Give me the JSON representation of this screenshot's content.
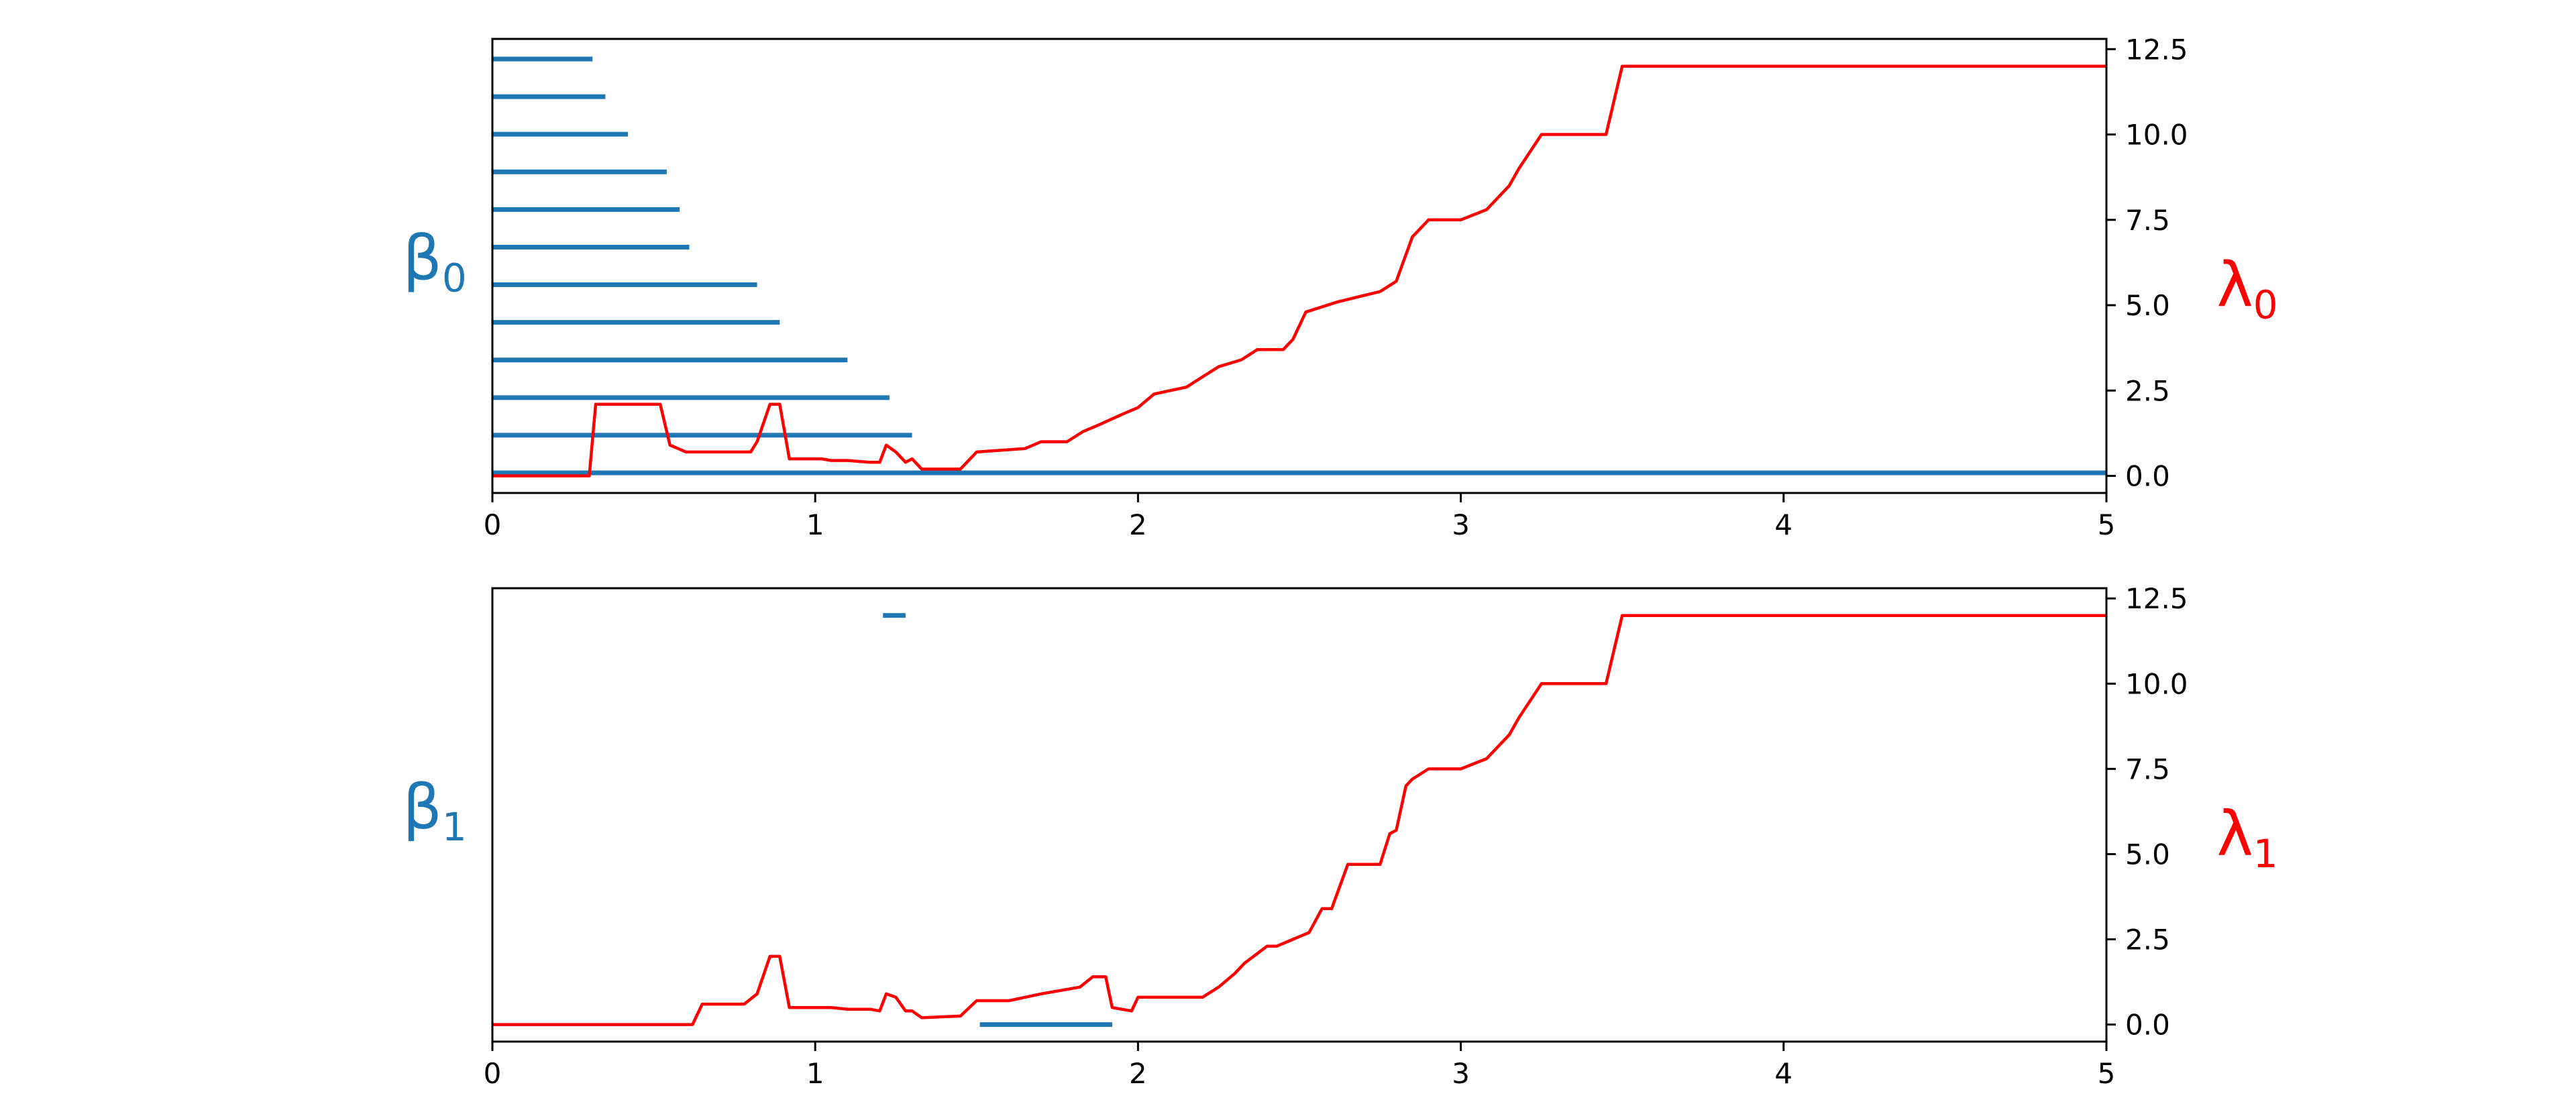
{
  "colors": {
    "barcode": "#1f77b4",
    "lambda": "#ff0000",
    "axis": "#000000"
  },
  "chart_data": [
    {
      "type": "line",
      "panel": "top",
      "left_label": {
        "text": "β",
        "sub": "0"
      },
      "right_label": {
        "text": "λ",
        "sub": "0"
      },
      "x_ticks": [
        "0",
        "1",
        "2",
        "3",
        "4",
        "5"
      ],
      "xlim": [
        0,
        5
      ],
      "right_ticks": [
        "0.0",
        "2.5",
        "5.0",
        "7.5",
        "10.0",
        "12.5"
      ],
      "ylim_right": [
        -0.5,
        12.8
      ],
      "barcode": {
        "rows": 12,
        "intervals": [
          [
            0,
            0.31
          ],
          [
            0,
            0.35
          ],
          [
            0,
            0.42
          ],
          [
            0,
            0.54
          ],
          [
            0,
            0.58
          ],
          [
            0,
            0.61
          ],
          [
            0,
            0.82
          ],
          [
            0,
            0.89
          ],
          [
            0,
            1.1
          ],
          [
            0,
            1.23
          ],
          [
            0,
            1.3
          ],
          [
            0,
            5.0
          ]
        ]
      },
      "lambda_series": {
        "x": [
          0,
          0.3,
          0.32,
          0.35,
          0.52,
          0.55,
          0.6,
          0.8,
          0.82,
          0.86,
          0.89,
          0.92,
          1.02,
          1.05,
          1.1,
          1.17,
          1.2,
          1.22,
          1.25,
          1.28,
          1.3,
          1.33,
          1.35,
          1.45,
          1.5,
          1.65,
          1.7,
          1.78,
          1.83,
          1.88,
          1.95,
          2.0,
          2.05,
          2.1,
          2.15,
          2.2,
          2.25,
          2.32,
          2.37,
          2.45,
          2.48,
          2.52,
          2.62,
          2.75,
          2.8,
          2.85,
          2.9,
          3.0,
          3.08,
          3.15,
          3.18,
          3.25,
          3.3,
          3.45,
          3.5,
          5.0
        ],
        "y": [
          0,
          0,
          2.1,
          2.1,
          2.1,
          0.9,
          0.7,
          0.7,
          1.0,
          2.1,
          2.1,
          0.5,
          0.5,
          0.45,
          0.45,
          0.4,
          0.4,
          0.9,
          0.7,
          0.4,
          0.5,
          0.2,
          0.2,
          0.2,
          0.7,
          0.8,
          1.0,
          1.0,
          1.3,
          1.5,
          1.8,
          2.0,
          2.4,
          2.5,
          2.6,
          2.9,
          3.2,
          3.4,
          3.7,
          3.7,
          4.0,
          4.8,
          5.1,
          5.4,
          5.7,
          7.0,
          7.5,
          7.5,
          7.8,
          8.5,
          9.0,
          10.0,
          10.0,
          10.0,
          12.0,
          12.0
        ]
      }
    },
    {
      "type": "line",
      "panel": "bottom",
      "left_label": {
        "text": "β",
        "sub": "1"
      },
      "right_label": {
        "text": "λ",
        "sub": "1"
      },
      "x_ticks": [
        "0",
        "1",
        "2",
        "3",
        "4",
        "5"
      ],
      "xlim": [
        0,
        5
      ],
      "right_ticks": [
        "0.0",
        "2.5",
        "5.0",
        "7.5",
        "10.0",
        "12.5"
      ],
      "ylim_right": [
        -0.5,
        12.8
      ],
      "barcode_bars": [
        {
          "birth": 1.21,
          "death": 1.28,
          "level": 12.0
        },
        {
          "birth": 1.51,
          "death": 1.92,
          "level": 0.0
        }
      ],
      "lambda_series": {
        "x": [
          0,
          0.62,
          0.65,
          0.78,
          0.82,
          0.86,
          0.89,
          0.92,
          1.05,
          1.1,
          1.17,
          1.2,
          1.22,
          1.25,
          1.28,
          1.3,
          1.33,
          1.45,
          1.5,
          1.6,
          1.65,
          1.7,
          1.76,
          1.82,
          1.86,
          1.9,
          1.92,
          1.98,
          2.0,
          2.05,
          2.2,
          2.25,
          2.3,
          2.33,
          2.4,
          2.43,
          2.48,
          2.53,
          2.57,
          2.6,
          2.65,
          2.75,
          2.78,
          2.8,
          2.83,
          2.85,
          2.9,
          3.0,
          3.08,
          3.15,
          3.18,
          3.25,
          3.3,
          3.45,
          3.5,
          5.0
        ],
        "y": [
          0,
          0,
          0.6,
          0.6,
          0.9,
          2.0,
          2.0,
          0.5,
          0.5,
          0.45,
          0.45,
          0.4,
          0.9,
          0.8,
          0.4,
          0.4,
          0.2,
          0.25,
          0.7,
          0.7,
          0.8,
          0.9,
          1.0,
          1.1,
          1.4,
          1.4,
          0.5,
          0.4,
          0.8,
          0.8,
          0.8,
          1.1,
          1.5,
          1.8,
          2.3,
          2.3,
          2.5,
          2.7,
          3.4,
          3.4,
          4.7,
          4.7,
          5.6,
          5.7,
          7.0,
          7.2,
          7.5,
          7.5,
          7.8,
          8.5,
          9.0,
          10.0,
          10.0,
          10.0,
          12.0,
          12.0
        ]
      }
    }
  ]
}
